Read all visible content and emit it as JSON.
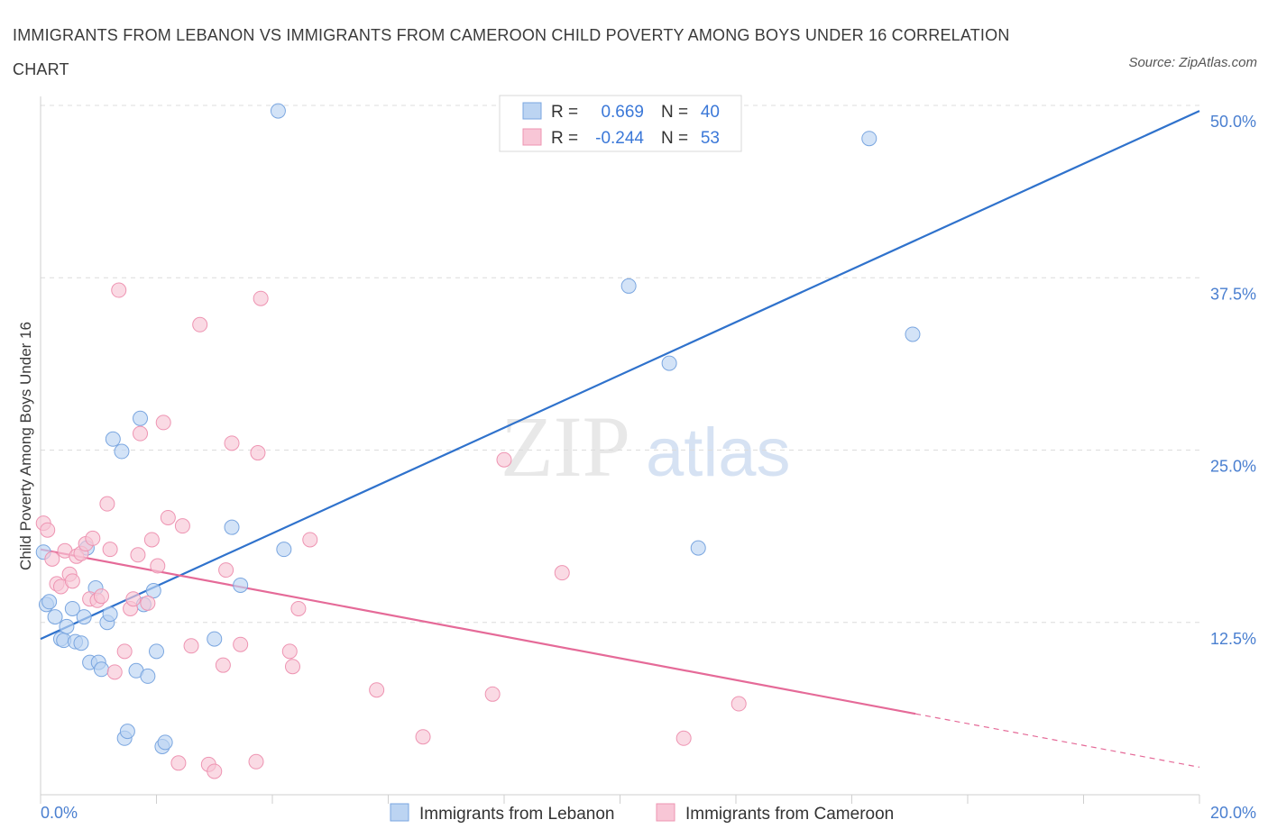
{
  "title": "IMMIGRANTS FROM LEBANON VS IMMIGRANTS FROM CAMEROON CHILD POVERTY AMONG BOYS UNDER 16 CORRELATION CHART",
  "source": "Source: ZipAtlas.com",
  "watermark": {
    "zip": "ZIP",
    "atlas": "atlas"
  },
  "colors": {
    "lebanon_fill": "#bcd4f2",
    "lebanon_stroke": "#7aa6e0",
    "lebanon_line": "#2f72cc",
    "cameroon_fill": "#f8c6d6",
    "cameroon_stroke": "#ee94b2",
    "cameroon_line": "#e56a98",
    "tick_color": "#4a7fd0",
    "grid": "#dcdcdc"
  },
  "legend": {
    "lebanon": {
      "r_label": "R =",
      "r_value": "0.669",
      "n_label": "N =",
      "n_value": "40"
    },
    "cameroon": {
      "r_label": "R =",
      "r_value": "-0.244",
      "n_label": "N =",
      "n_value": "53"
    }
  },
  "chart_data": {
    "type": "scatter",
    "title": "IMMIGRANTS FROM LEBANON VS IMMIGRANTS FROM CAMEROON CHILD POVERTY AMONG BOYS UNDER 16 CORRELATION CHART",
    "xlabel": "",
    "ylabel": "Child Poverty Among Boys Under 16",
    "xlim": [
      0,
      20
    ],
    "ylim": [
      0,
      50
    ],
    "x_tick_labels": [
      "0.0%",
      "20.0%"
    ],
    "y_ticks": [
      12.5,
      25.0,
      37.5,
      50.0
    ],
    "y_tick_labels": [
      "12.5%",
      "25.0%",
      "37.5%",
      "50.0%"
    ],
    "grid": true,
    "legend_position": "top-center",
    "series": [
      {
        "name": "Immigrants from Lebanon",
        "points": [
          [
            0.05,
            17.6
          ],
          [
            0.1,
            13.8
          ],
          [
            0.15,
            14.0
          ],
          [
            0.25,
            12.9
          ],
          [
            0.35,
            11.3
          ],
          [
            0.4,
            11.2
          ],
          [
            0.45,
            12.2
          ],
          [
            0.55,
            13.5
          ],
          [
            0.6,
            11.1
          ],
          [
            0.7,
            11.0
          ],
          [
            0.75,
            12.9
          ],
          [
            0.8,
            17.9
          ],
          [
            0.85,
            9.6
          ],
          [
            0.95,
            15.0
          ],
          [
            1.0,
            9.6
          ],
          [
            1.05,
            9.1
          ],
          [
            1.15,
            12.5
          ],
          [
            1.2,
            13.1
          ],
          [
            1.25,
            25.8
          ],
          [
            1.4,
            24.9
          ],
          [
            1.45,
            4.1
          ],
          [
            1.5,
            4.6
          ],
          [
            1.65,
            9.0
          ],
          [
            1.72,
            27.3
          ],
          [
            1.78,
            13.8
          ],
          [
            1.85,
            8.6
          ],
          [
            1.95,
            14.8
          ],
          [
            2.0,
            10.4
          ],
          [
            2.1,
            3.5
          ],
          [
            2.15,
            3.8
          ],
          [
            3.0,
            11.3
          ],
          [
            3.3,
            19.4
          ],
          [
            3.45,
            15.2
          ],
          [
            4.1,
            49.6
          ],
          [
            4.2,
            17.8
          ],
          [
            10.15,
            36.9
          ],
          [
            10.85,
            31.3
          ],
          [
            11.35,
            17.9
          ],
          [
            14.3,
            47.6
          ],
          [
            15.05,
            33.4
          ]
        ],
        "trend": {
          "x0": 0,
          "y0": 11.3,
          "x1": 20,
          "y1": 49.6,
          "solid_until": 20
        }
      },
      {
        "name": "Immigrants from Cameroon",
        "points": [
          [
            0.05,
            19.7
          ],
          [
            0.12,
            19.2
          ],
          [
            0.2,
            17.1
          ],
          [
            0.28,
            15.3
          ],
          [
            0.35,
            15.1
          ],
          [
            0.42,
            17.7
          ],
          [
            0.5,
            16.0
          ],
          [
            0.55,
            15.5
          ],
          [
            0.62,
            17.3
          ],
          [
            0.7,
            17.5
          ],
          [
            0.78,
            18.2
          ],
          [
            0.85,
            14.2
          ],
          [
            0.9,
            18.6
          ],
          [
            0.98,
            14.1
          ],
          [
            1.05,
            14.4
          ],
          [
            1.15,
            21.1
          ],
          [
            1.2,
            17.8
          ],
          [
            1.28,
            8.9
          ],
          [
            1.35,
            36.6
          ],
          [
            1.45,
            10.4
          ],
          [
            1.55,
            13.5
          ],
          [
            1.6,
            14.2
          ],
          [
            1.68,
            17.4
          ],
          [
            1.72,
            26.2
          ],
          [
            1.85,
            13.9
          ],
          [
            1.92,
            18.5
          ],
          [
            2.02,
            16.6
          ],
          [
            2.12,
            27.0
          ],
          [
            2.2,
            20.1
          ],
          [
            2.38,
            2.3
          ],
          [
            2.45,
            19.5
          ],
          [
            2.6,
            10.8
          ],
          [
            2.75,
            34.1
          ],
          [
            2.9,
            2.2
          ],
          [
            3.0,
            1.7
          ],
          [
            3.15,
            9.4
          ],
          [
            3.2,
            16.3
          ],
          [
            3.3,
            25.5
          ],
          [
            3.45,
            10.9
          ],
          [
            3.72,
            2.4
          ],
          [
            3.75,
            24.8
          ],
          [
            3.8,
            36.0
          ],
          [
            4.3,
            10.4
          ],
          [
            4.35,
            9.3
          ],
          [
            4.45,
            13.5
          ],
          [
            4.65,
            18.5
          ],
          [
            5.8,
            7.6
          ],
          [
            6.6,
            4.2
          ],
          [
            7.8,
            7.3
          ],
          [
            8.0,
            24.3
          ],
          [
            9.0,
            16.1
          ],
          [
            11.1,
            4.1
          ],
          [
            12.05,
            6.6
          ]
        ],
        "trend": {
          "x0": 0,
          "y0": 17.8,
          "x1": 20,
          "y1": 2.0,
          "solid_until": 15.1
        }
      }
    ]
  },
  "bottom_legend": [
    {
      "label": "Immigrants from Lebanon",
      "series": "lebanon"
    },
    {
      "label": "Immigrants from Cameroon",
      "series": "cameroon"
    }
  ]
}
